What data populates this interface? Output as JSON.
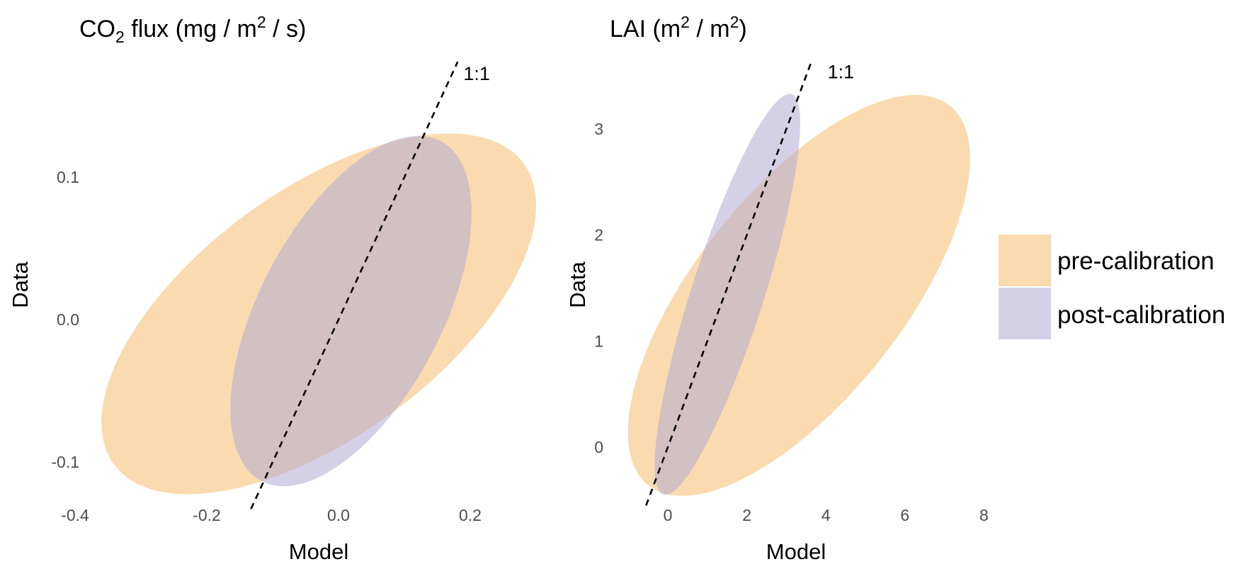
{
  "colors": {
    "pre": "#f5bc6e",
    "post": "#b1abd4",
    "pre_alpha": 0.55,
    "post_alpha": 0.55,
    "one_to_one_line": "#000000"
  },
  "legend": {
    "position": "right",
    "items": [
      {
        "key": "pre",
        "label": "pre-calibration"
      },
      {
        "key": "post",
        "label": "post-calibration"
      }
    ]
  },
  "chart_data": [
    {
      "type": "scatter",
      "subtype": "ellipse",
      "title_parts": {
        "a": "CO",
        "sub": "2",
        "b": " flux (mg / m",
        "sup": "2",
        "c": " / s)"
      },
      "title": "CO2 flux (mg / m2 / s)",
      "xlabel": "Model",
      "ylabel": "Data",
      "xticks": [
        -0.4,
        -0.2,
        0.0,
        0.2
      ],
      "xtick_labels": [
        "-0.4",
        "-0.2",
        "0.0",
        "0.2"
      ],
      "yticks": [
        -0.1,
        0.0,
        0.1
      ],
      "ytick_labels": [
        "-0.1",
        "0.0",
        "0.1"
      ],
      "grid": false,
      "reference_line": {
        "label": "1:1",
        "slope": 1,
        "intercept": 0,
        "x_range": [
          -0.133,
          0.181
        ]
      },
      "series": [
        {
          "name": "pre-calibration",
          "key": "pre",
          "center": [
            -0.03,
            0.004
          ],
          "x_halfwidth": 0.33,
          "y_halfwidth": 0.1266,
          "phase_deg": 53
        },
        {
          "name": "post-calibration",
          "key": "post",
          "center": [
            0.019,
            0.006
          ],
          "x_halfwidth": 0.183,
          "y_halfwidth": 0.123,
          "phase_deg": 56
        }
      ]
    },
    {
      "type": "scatter",
      "subtype": "ellipse",
      "title_parts": {
        "a": "LAI (m",
        "sup1": "2",
        "b": " / m",
        "sup2": "2",
        "c": ")"
      },
      "title": "LAI (m2 / m2)",
      "xlabel": "Model",
      "ylabel": "Data",
      "xticks": [
        0,
        2,
        4,
        6,
        8
      ],
      "xtick_labels": [
        "0",
        "2",
        "4",
        "6",
        "8"
      ],
      "yticks": [
        0,
        1,
        2,
        3
      ],
      "ytick_labels": [
        "0",
        "1",
        "2",
        "3"
      ],
      "grid": false,
      "reference_line": {
        "label": "1:1",
        "slope": 1,
        "intercept": 0,
        "x_range": [
          -0.55,
          3.65
        ]
      },
      "series": [
        {
          "name": "pre-calibration",
          "key": "pre",
          "center": [
            3.32,
            1.43
          ],
          "x_halfwidth": 4.33,
          "y_halfwidth": 1.89,
          "phase_deg": 47
        },
        {
          "name": "post-calibration",
          "key": "post",
          "center": [
            1.51,
            1.44
          ],
          "x_halfwidth": 1.84,
          "y_halfwidth": 1.89,
          "phase_deg": 31.5
        }
      ]
    }
  ]
}
